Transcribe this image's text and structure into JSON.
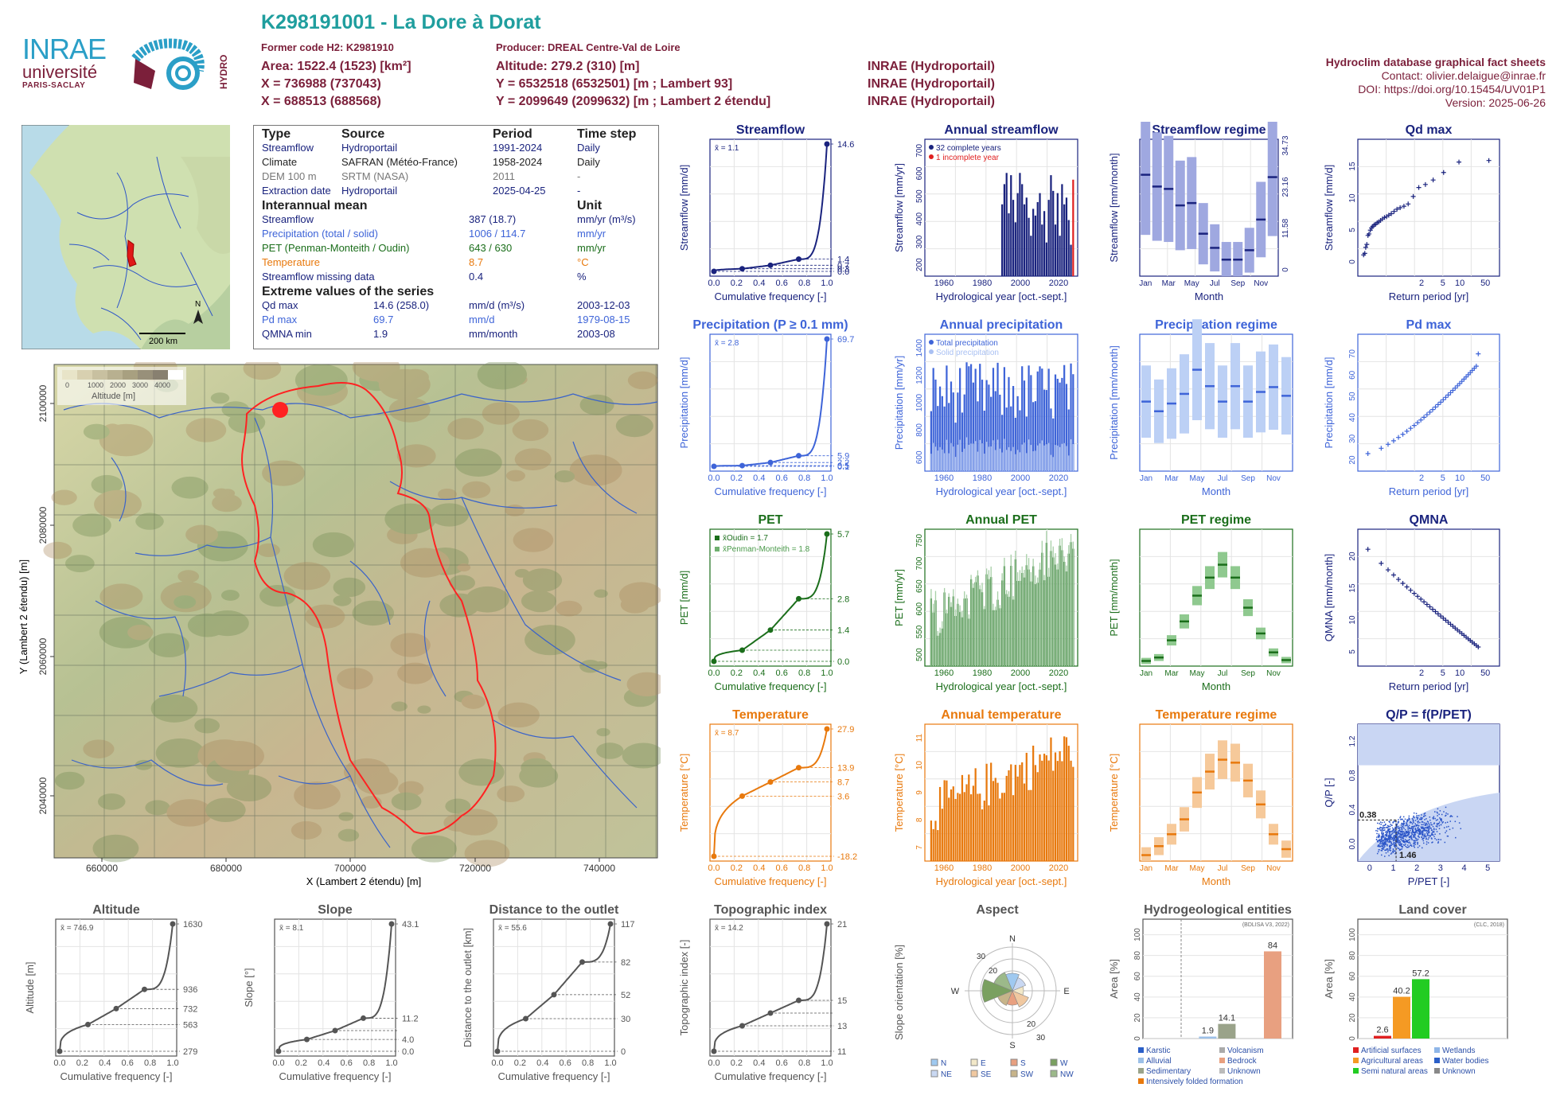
{
  "header": {
    "title": "K298191001 - La Dore à Dorat",
    "former_code": "Former code H2: K2981910",
    "producer": "Producer: DREAL Centre-Val de Loire",
    "area": "Area: 1522.4 (1523) [km²]",
    "x": "X = 736988 (737043)",
    "x2": "X = 688513 (688568)",
    "altitude": "Altitude: 279.2 (310) [m]",
    "y": "Y = 6532518 (6532501) [m ; Lambert 93]",
    "y2": "Y = 2099649 (2099632) [m ; Lambert 2 étendu]",
    "src1": "INRAE (Hydroportail)",
    "src2": "INRAE (Hydroportail)",
    "src3": "INRAE (Hydroportail)",
    "db_title": "Hydroclim database graphical fact sheets",
    "contact": "Contact: olivier.delaigue@inrae.fr",
    "doi": "DOI: https://doi.org/10.15454/UV01P1",
    "version": "Version: 2025-06-26"
  },
  "logos": {
    "inrae": "INRAE",
    "universite": "université",
    "paris_saclay": "PARIS-SACLAY",
    "hydro": "HYDRO"
  },
  "colors": {
    "streamflow": "#1a237e",
    "precip": "#3e64d8",
    "pet": "#1b6e1b",
    "temp": "#e8790d",
    "grey": "#555555",
    "header": "#7b1f3a",
    "title": "#1f9e9e"
  },
  "infobox": {
    "h_type": "Type",
    "h_source": "Source",
    "h_period": "Period",
    "h_timestep": "Time step",
    "rows1": [
      {
        "type": "Streamflow",
        "source": "Hydroportail",
        "period": "1991-2024",
        "step": "Daily",
        "color": "#1a237e"
      },
      {
        "type": "Climate",
        "source": "SAFRAN (Météo-France)",
        "period": "1958-2024",
        "step": "Daily",
        "color": "#222222"
      },
      {
        "type": "DEM 100 m",
        "source": "SRTM (NASA)",
        "period": "2011",
        "step": "-",
        "color": "#777777"
      },
      {
        "type": "Extraction date",
        "source": "Hydroportail",
        "period": "2025-04-25",
        "step": "-",
        "color": "#1a237e"
      }
    ],
    "h_interannual": "Interannual mean",
    "h_unit": "Unit",
    "rows2": [
      {
        "label": "Streamflow",
        "value": "387 (18.7)",
        "unit": "mm/yr (m³/s)",
        "color": "#1a237e"
      },
      {
        "label": "Precipitation (total / solid)",
        "value": "1006 / 114.7",
        "unit": "mm/yr",
        "color": "#3e64d8"
      },
      {
        "label": "PET (Penman-Monteith / Oudin)",
        "value": "643 / 630",
        "unit": "mm/yr",
        "color": "#1b6e1b"
      },
      {
        "label": "Temperature",
        "value": "8.7",
        "unit": "°C",
        "color": "#e8790d"
      },
      {
        "label": "Streamflow missing data",
        "value": "0.4",
        "unit": "%",
        "color": "#1a237e"
      }
    ],
    "h_extreme": "Extreme values of the series",
    "rows3": [
      {
        "label": "Qd max",
        "value": "14.6 (258.0)",
        "unit": "mm/d (m³/s)",
        "date": "2003-12-03",
        "color": "#1a237e"
      },
      {
        "label": "Pd max",
        "value": "69.7",
        "unit": "mm/d",
        "date": "1979-08-15",
        "color": "#3e64d8"
      },
      {
        "label": "QMNA min",
        "value": "1.9",
        "unit": "mm/month",
        "date": "2003-08",
        "color": "#1a237e"
      }
    ]
  },
  "locator": {
    "scale_label": "200 km",
    "north": "N"
  },
  "map": {
    "legend_title": "Altitude [m]",
    "legend_ticks": [
      "0",
      "1000",
      "2000",
      "3000",
      "4000"
    ],
    "xlabel": "X (Lambert 2 étendu) [m]",
    "ylabel": "Y (Lambert 2 étendu) [m]",
    "xticks": [
      "660000",
      "680000",
      "700000",
      "720000",
      "740000"
    ],
    "yticks": [
      "2040000",
      "2060000",
      "2080000",
      "2100000"
    ]
  },
  "chart_data": [
    {
      "id": "streamflow_cdf",
      "type": "line",
      "title": "Streamflow",
      "xlabel": "Cumulative frequency [-]",
      "ylabel": "Streamflow [mm/d]",
      "annotation": "x̄ = 1.1",
      "x": [
        0,
        0.25,
        0.5,
        0.75,
        1.0
      ],
      "y": [
        0.0,
        0.3,
        0.7,
        1.4,
        14.6
      ],
      "right_ticks": [
        "14.6",
        "1.4",
        "0.7",
        "0.3",
        "0.0"
      ]
    },
    {
      "id": "annual_streamflow",
      "type": "bar",
      "title": "Annual streamflow",
      "xlabel": "Hydrological year [oct.-sept.]",
      "ylabel": "Streamflow [mm/yr]",
      "legend": [
        "32 complete years",
        "1 incomplete year"
      ],
      "xticks": [
        "1960",
        "1980",
        "2000",
        "2020"
      ],
      "yticks": [
        "200",
        "300",
        "400",
        "500",
        "600",
        "700"
      ],
      "x": [
        1991,
        1992,
        1993,
        1994,
        1995,
        1996,
        1997,
        1998,
        1999,
        2000,
        2001,
        2002,
        2003,
        2004,
        2005,
        2006,
        2007,
        2008,
        2009,
        2010,
        2011,
        2012,
        2013,
        2014,
        2015,
        2016,
        2017,
        2018,
        2019,
        2020,
        2021,
        2022,
        2023
      ],
      "values": [
        470,
        560,
        610,
        430,
        600,
        490,
        390,
        520,
        610,
        560,
        470,
        500,
        410,
        330,
        450,
        420,
        480,
        520,
        380,
        440,
        300,
        490,
        600,
        530,
        380,
        520,
        330,
        560,
        470,
        500,
        400,
        290,
        580
      ]
    },
    {
      "id": "streamflow_regime",
      "type": "bar",
      "title": "Streamflow regime",
      "xlabel": "Month",
      "ylabel": "Streamflow [mm/month]",
      "categories": [
        "Jan",
        "Feb",
        "Mar",
        "Apr",
        "May",
        "Jun",
        "Jul",
        "Aug",
        "Sep",
        "Oct",
        "Nov",
        "Dec"
      ],
      "median": [
        43,
        38,
        37,
        30,
        31,
        18,
        12,
        7,
        7,
        11,
        24,
        42
      ],
      "right_ticks": [
        "34.73",
        "23.16",
        "11.58",
        "0"
      ]
    },
    {
      "id": "qd_max",
      "type": "scatter",
      "title": "Qd max",
      "xlabel": "Return period [yr]",
      "ylabel": "Streamflow [mm/d]",
      "xticks": [
        "2",
        "5",
        "10",
        "50"
      ],
      "yticks": [
        "0",
        "5",
        "10",
        "15"
      ],
      "x": [
        1.03,
        1.07,
        1.1,
        1.14,
        1.18,
        1.22,
        1.27,
        1.32,
        1.37,
        1.43,
        1.5,
        1.57,
        1.65,
        1.74,
        1.85,
        1.97,
        2.1,
        2.25,
        2.43,
        2.65,
        2.9,
        3.2,
        3.6,
        4.1,
        4.8,
        5.7,
        7.0,
        8.9,
        12.3,
        19.8,
        50
      ],
      "values": [
        2.2,
        2.4,
        3.2,
        3.6,
        4.8,
        5.0,
        5.5,
        5.8,
        6.0,
        6.2,
        6.3,
        6.5,
        6.6,
        6.8,
        7.0,
        7.2,
        7.3,
        7.5,
        7.7,
        8.0,
        8.3,
        8.5,
        8.7,
        9.0,
        10.0,
        11.2,
        11.6,
        12.2,
        13.2,
        14.6,
        14.8
      ]
    },
    {
      "id": "precip_cdf",
      "type": "line",
      "title": "Precipitation (P ≥ 0.1 mm)",
      "xlabel": "Cumulative frequency [-]",
      "ylabel": "Precipitation [mm/d]",
      "annotation": "x̄ = 2.8",
      "x": [
        0,
        0.25,
        0.5,
        0.75,
        1.0
      ],
      "y": [
        0.1,
        0.5,
        2.2,
        5.9,
        69.7
      ],
      "right_ticks": [
        "69.7",
        "5.9",
        "2.2",
        "0.5",
        "0.1"
      ]
    },
    {
      "id": "annual_precip",
      "type": "bar",
      "title": "Annual precipitation",
      "xlabel": "Hydrological year [oct.-sept.]",
      "ylabel": "Precipitation [mm/yr]",
      "legend": [
        "Total precipitation",
        "Solid precipitation"
      ],
      "xticks": [
        "1960",
        "1980",
        "2000",
        "2020"
      ],
      "yticks": [
        "600",
        "800",
        "1000",
        "1200",
        "1400"
      ]
    },
    {
      "id": "precip_regime",
      "type": "bar",
      "title": "Precipitation regime",
      "xlabel": "Month",
      "ylabel": "Precipitation [mm/month]",
      "categories": [
        "Jan",
        "Feb",
        "Mar",
        "Apr",
        "May",
        "Jun",
        "Jul",
        "Aug",
        "Sep",
        "Oct",
        "Nov",
        "Dec"
      ],
      "median": [
        72,
        62,
        70,
        80,
        105,
        88,
        72,
        88,
        72,
        82,
        87,
        78
      ]
    },
    {
      "id": "pd_max",
      "type": "scatter",
      "title": "Pd max",
      "xlabel": "Return period [yr]",
      "ylabel": "Precipitation [mm/d]",
      "xticks": [
        "2",
        "5",
        "10",
        "50"
      ],
      "yticks": [
        "20",
        "30",
        "40",
        "50",
        "60",
        "70"
      ]
    },
    {
      "id": "pet_cdf",
      "type": "line",
      "title": "PET",
      "xlabel": "Cumulative frequency [-]",
      "ylabel": "PET [mm/d]",
      "annotation1": "x̄Oudin = 1.7",
      "annotation2": "x̄Penman-Monteith = 1.8",
      "x": [
        0,
        0.25,
        0.5,
        0.75,
        1.0
      ],
      "y": [
        0.0,
        0.5,
        1.4,
        2.8,
        5.7
      ],
      "right_ticks": [
        "5.7",
        "2.8",
        "1.4",
        "0.0"
      ]
    },
    {
      "id": "annual_pet",
      "type": "bar",
      "title": "Annual PET",
      "xlabel": "Hydrological year [oct.-sept.]",
      "ylabel": "PET [mm/yr]",
      "xticks": [
        "1960",
        "1980",
        "2000",
        "2020"
      ],
      "yticks": [
        "500",
        "550",
        "600",
        "650",
        "700",
        "750"
      ]
    },
    {
      "id": "pet_regime",
      "type": "bar",
      "title": "PET regime",
      "xlabel": "Month",
      "ylabel": "PET [mm/month]",
      "categories": [
        "Jan",
        "Feb",
        "Mar",
        "Apr",
        "May",
        "Jun",
        "Jul",
        "Aug",
        "Sep",
        "Oct",
        "Nov",
        "Dec"
      ],
      "median": [
        6,
        10,
        30,
        52,
        82,
        103,
        118,
        103,
        68,
        38,
        16,
        7
      ]
    },
    {
      "id": "qmna",
      "type": "scatter",
      "title": "QMNA",
      "xlabel": "Return period [yr]",
      "ylabel": "QMNA [mm/month]",
      "xticks": [
        "2",
        "5",
        "10",
        "50"
      ],
      "yticks": [
        "5",
        "10",
        "15",
        "20"
      ]
    },
    {
      "id": "temp_cdf",
      "type": "line",
      "title": "Temperature",
      "xlabel": "Cumulative frequency [-]",
      "ylabel": "Temperature [°C]",
      "annotation": "x̄ = 8.7",
      "x": [
        0,
        0.25,
        0.5,
        0.75,
        1.0
      ],
      "y": [
        -18.2,
        3.6,
        8.7,
        13.9,
        27.9
      ],
      "right_ticks": [
        "27.9",
        "13.9",
        "8.7",
        "3.6",
        "-18.2"
      ]
    },
    {
      "id": "annual_temp",
      "type": "bar",
      "title": "Annual temperature",
      "xlabel": "Hydrological year [oct.-sept.]",
      "ylabel": "Temperature [°C]",
      "xticks": [
        "1960",
        "1980",
        "2000",
        "2020"
      ],
      "yticks": [
        "7",
        "8",
        "9",
        "10",
        "11"
      ]
    },
    {
      "id": "temp_regime",
      "type": "bar",
      "title": "Temperature regime",
      "xlabel": "Month",
      "ylabel": "Temperature [°C]",
      "categories": [
        "Jan",
        "Feb",
        "Mar",
        "Apr",
        "May",
        "Jun",
        "Jul",
        "Aug",
        "Sep",
        "Oct",
        "Nov",
        "Dec"
      ],
      "median": [
        1,
        2.5,
        4.5,
        7,
        11.5,
        15,
        17,
        16.5,
        13.5,
        9.5,
        4.5,
        2
      ]
    },
    {
      "id": "qp_ppet",
      "type": "scatter",
      "title": "Q/P = f(P/PET)",
      "xlabel": "P/PET [-]",
      "ylabel": "Q/P [-]",
      "labels": [
        "0.38",
        "1.46"
      ],
      "xticks": [
        "0",
        "1",
        "2",
        "3",
        "4",
        "5"
      ],
      "yticks": [
        "0.0",
        "0.4",
        "0.8",
        "1.2"
      ]
    },
    {
      "id": "altitude_cdf",
      "type": "line",
      "title": "Altitude",
      "xlabel": "Cumulative frequency [-]",
      "ylabel": "Altitude [m]",
      "annotation": "x̄ = 746.9",
      "x": [
        0,
        0.25,
        0.5,
        0.75,
        1.0
      ],
      "y": [
        279,
        563,
        732,
        936,
        1630
      ],
      "right_ticks": [
        "1630",
        "936",
        "732",
        "563",
        "279"
      ]
    },
    {
      "id": "slope_cdf",
      "type": "line",
      "title": "Slope",
      "xlabel": "Cumulative frequency [-]",
      "ylabel": "Slope [°]",
      "annotation": "x̄ = 8.1",
      "x": [
        0,
        0.25,
        0.5,
        0.75,
        1.0
      ],
      "y": [
        0.0,
        4.0,
        7.0,
        11.2,
        43.1
      ],
      "right_ticks": [
        "43.1",
        "11.2",
        "4.0",
        "0.0"
      ]
    },
    {
      "id": "distance_cdf",
      "type": "line",
      "title": "Distance to the outlet",
      "xlabel": "Cumulative frequency [-]",
      "ylabel": "Distance to the outlet [km]",
      "annotation": "x̄ = 55.6",
      "x": [
        0,
        0.25,
        0.5,
        0.75,
        1.0
      ],
      "y": [
        0,
        30,
        52,
        82,
        117
      ],
      "right_ticks": [
        "117",
        "82",
        "52",
        "30",
        "0"
      ]
    },
    {
      "id": "topo_cdf",
      "type": "line",
      "title": "Topographic index",
      "xlabel": "Cumulative frequency [-]",
      "ylabel": "Topographic index [-]",
      "annotation": "x̄ = 14.2",
      "x": [
        0,
        0.25,
        0.5,
        0.75,
        1.0
      ],
      "y": [
        11,
        13,
        14,
        15,
        21
      ],
      "right_ticks": [
        "21",
        "15",
        "13",
        "11"
      ]
    },
    {
      "id": "aspect",
      "type": "pie",
      "title": "Aspect",
      "ylabel": "Slope orientation [%]",
      "legend": [
        "N",
        "E",
        "S",
        "W",
        "NE",
        "SE",
        "SW",
        "NW"
      ],
      "ring_labels": [
        "30",
        "20",
        "20",
        "30"
      ]
    },
    {
      "id": "hydrogeo",
      "type": "bar",
      "title": "Hydrogeological entities",
      "ylabel": "Area [%]",
      "note": "(BDLISA V3, 2022)",
      "categories": [
        "Alluvial",
        "Sedimentary",
        "Bedrock"
      ],
      "values": [
        1.9,
        14.1,
        84
      ],
      "legend": [
        "Karstic",
        "Volcanism",
        "Alluvial",
        "Bedrock",
        "Sedimentary",
        "Unknown",
        "Intensively folded formation"
      ]
    },
    {
      "id": "landcover",
      "type": "bar",
      "title": "Land cover",
      "ylabel": "Area [%]",
      "note": "(CLC, 2018)",
      "categories": [
        "Artificial surfaces",
        "Agricultural areas",
        "Semi natural areas"
      ],
      "values": [
        2.6,
        40.2,
        57.2
      ],
      "legend": [
        "Artificial surfaces",
        "Wetlands",
        "Agricultural areas",
        "Water bodies",
        "Semi natural areas",
        "Unknown"
      ]
    }
  ]
}
